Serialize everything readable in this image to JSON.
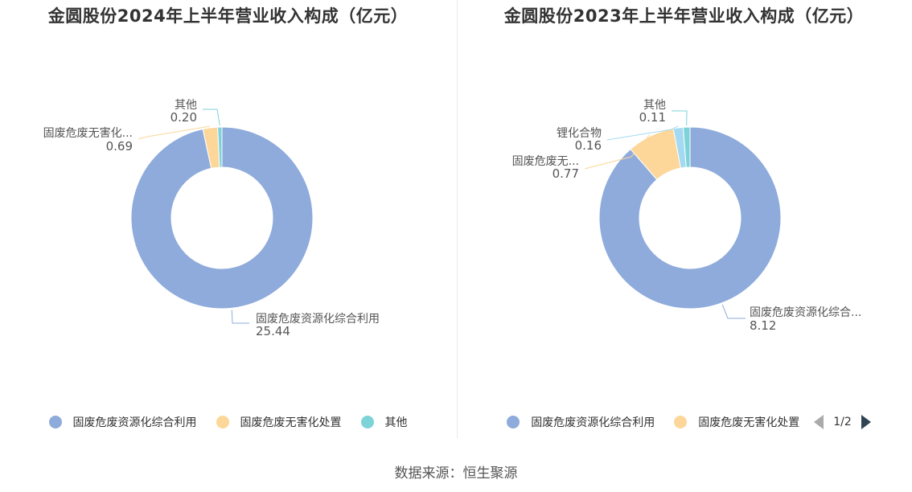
{
  "chart_data": [
    {
      "type": "pie",
      "title": "金圆股份2024年上半年营业收入构成（亿元）",
      "categories": [
        "固废危废资源化综合利用",
        "固废危废无害化处置",
        "其他"
      ],
      "values": [
        25.44,
        0.69,
        0.2
      ],
      "slice_labels": [
        "固废危废资源化综合利用",
        "固废危废无害化...",
        "其他"
      ],
      "value_labels": [
        "25.44",
        "0.69",
        "0.20"
      ],
      "colors": [
        "#8eabdb",
        "#fdd69a",
        "#7dd3d8"
      ],
      "legend": {
        "position": "bottom",
        "items": [
          "固废危废资源化综合利用",
          "固废危废无害化处置",
          "其他"
        ]
      }
    },
    {
      "type": "pie",
      "title": "金圆股份2023年上半年营业收入构成（亿元）",
      "categories": [
        "固废危废资源化综合利用",
        "固废危废无害化处置",
        "锂化合物",
        "其他"
      ],
      "values": [
        8.12,
        0.77,
        0.16,
        0.11
      ],
      "slice_labels": [
        "固废危废资源化综合...",
        "固废危废无...",
        "锂化合物",
        "其他"
      ],
      "value_labels": [
        "8.12",
        "0.77",
        "0.16",
        "0.11"
      ],
      "colors": [
        "#8eabdb",
        "#fdd69a",
        "#a3daf2",
        "#7dd3d8"
      ],
      "legend": {
        "position": "bottom",
        "items": [
          "固废危废资源化综合利用",
          "固废危废无害化处置"
        ],
        "page": "1/2"
      }
    }
  ],
  "source": "数据来源：恒生聚源"
}
